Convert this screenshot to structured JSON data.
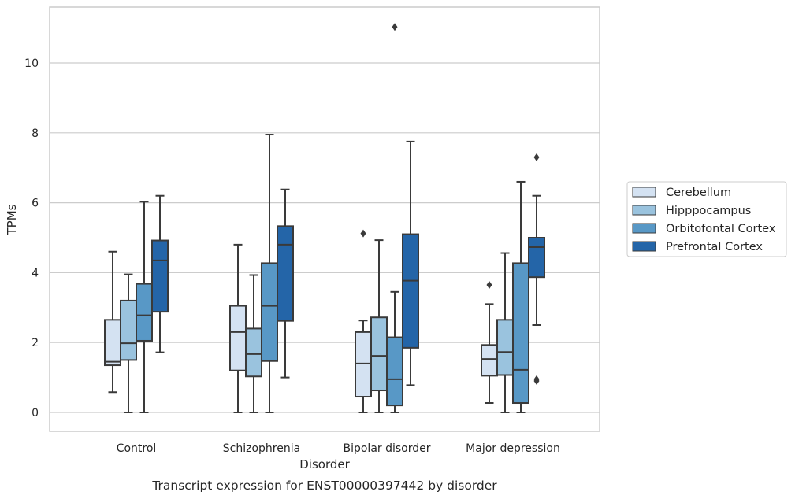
{
  "chart_data": {
    "type": "box",
    "title": "",
    "caption": "Transcript expression for ENST00000397442 by disorder",
    "xlabel": "Disorder",
    "ylabel": "TPMs",
    "ylim": [
      -0.5,
      11.6
    ],
    "yticks": [
      0,
      2,
      4,
      6,
      8,
      10
    ],
    "grid": true,
    "legend_position": "right",
    "categories": [
      "Control",
      "Schizophrenia",
      "Bipolar disorder",
      "Major depression"
    ],
    "series": [
      {
        "name": "Cerebellum",
        "color": "#d4e2f2",
        "boxes": [
          {
            "whislo": 0.58,
            "q1": 1.35,
            "med": 1.45,
            "q3": 2.65,
            "whishi": 4.6,
            "fliers": []
          },
          {
            "whislo": 0.0,
            "q1": 1.2,
            "med": 2.3,
            "q3": 3.05,
            "whishi": 4.8,
            "fliers": []
          },
          {
            "whislo": 0.0,
            "q1": 0.45,
            "med": 1.4,
            "q3": 2.3,
            "whishi": 2.63,
            "fliers": [
              5.12
            ]
          },
          {
            "whislo": 0.27,
            "q1": 1.05,
            "med": 1.53,
            "q3": 1.93,
            "whishi": 3.1,
            "fliers": [
              3.65
            ]
          }
        ]
      },
      {
        "name": "Hipppocampus",
        "color": "#9ac3de",
        "boxes": [
          {
            "whislo": 0.0,
            "q1": 1.5,
            "med": 1.98,
            "q3": 3.2,
            "whishi": 3.95,
            "fliers": []
          },
          {
            "whislo": 0.0,
            "q1": 1.03,
            "med": 1.67,
            "q3": 2.4,
            "whishi": 3.93,
            "fliers": []
          },
          {
            "whislo": 0.0,
            "q1": 0.63,
            "med": 1.62,
            "q3": 2.72,
            "whishi": 4.93,
            "fliers": []
          },
          {
            "whislo": 0.0,
            "q1": 1.07,
            "med": 1.73,
            "q3": 2.65,
            "whishi": 4.56,
            "fliers": []
          }
        ]
      },
      {
        "name": "Orbitofontal Cortex",
        "color": "#5898c6",
        "boxes": [
          {
            "whislo": 0.0,
            "q1": 2.05,
            "med": 2.78,
            "q3": 3.68,
            "whishi": 6.03,
            "fliers": []
          },
          {
            "whislo": 0.0,
            "q1": 1.47,
            "med": 3.05,
            "q3": 4.27,
            "whishi": 7.95,
            "fliers": []
          },
          {
            "whislo": 0.0,
            "q1": 0.2,
            "med": 0.95,
            "q3": 2.15,
            "whishi": 3.45,
            "fliers": [
              11.03
            ]
          },
          {
            "whislo": 0.0,
            "q1": 0.27,
            "med": 1.22,
            "q3": 4.27,
            "whishi": 6.6,
            "fliers": []
          }
        ]
      },
      {
        "name": "Prefrontal Cortex",
        "color": "#2465a8",
        "boxes": [
          {
            "whislo": 1.72,
            "q1": 2.88,
            "med": 4.35,
            "q3": 4.92,
            "whishi": 6.2,
            "fliers": []
          },
          {
            "whislo": 1.0,
            "q1": 2.62,
            "med": 4.8,
            "q3": 5.33,
            "whishi": 6.38,
            "fliers": []
          },
          {
            "whislo": 0.78,
            "q1": 1.85,
            "med": 3.77,
            "q3": 5.1,
            "whishi": 7.75,
            "fliers": []
          },
          {
            "whislo": 2.5,
            "q1": 3.87,
            "med": 4.73,
            "q3": 5.0,
            "whishi": 6.2,
            "fliers": [
              7.3,
              0.95,
              0.9
            ]
          }
        ]
      }
    ]
  }
}
